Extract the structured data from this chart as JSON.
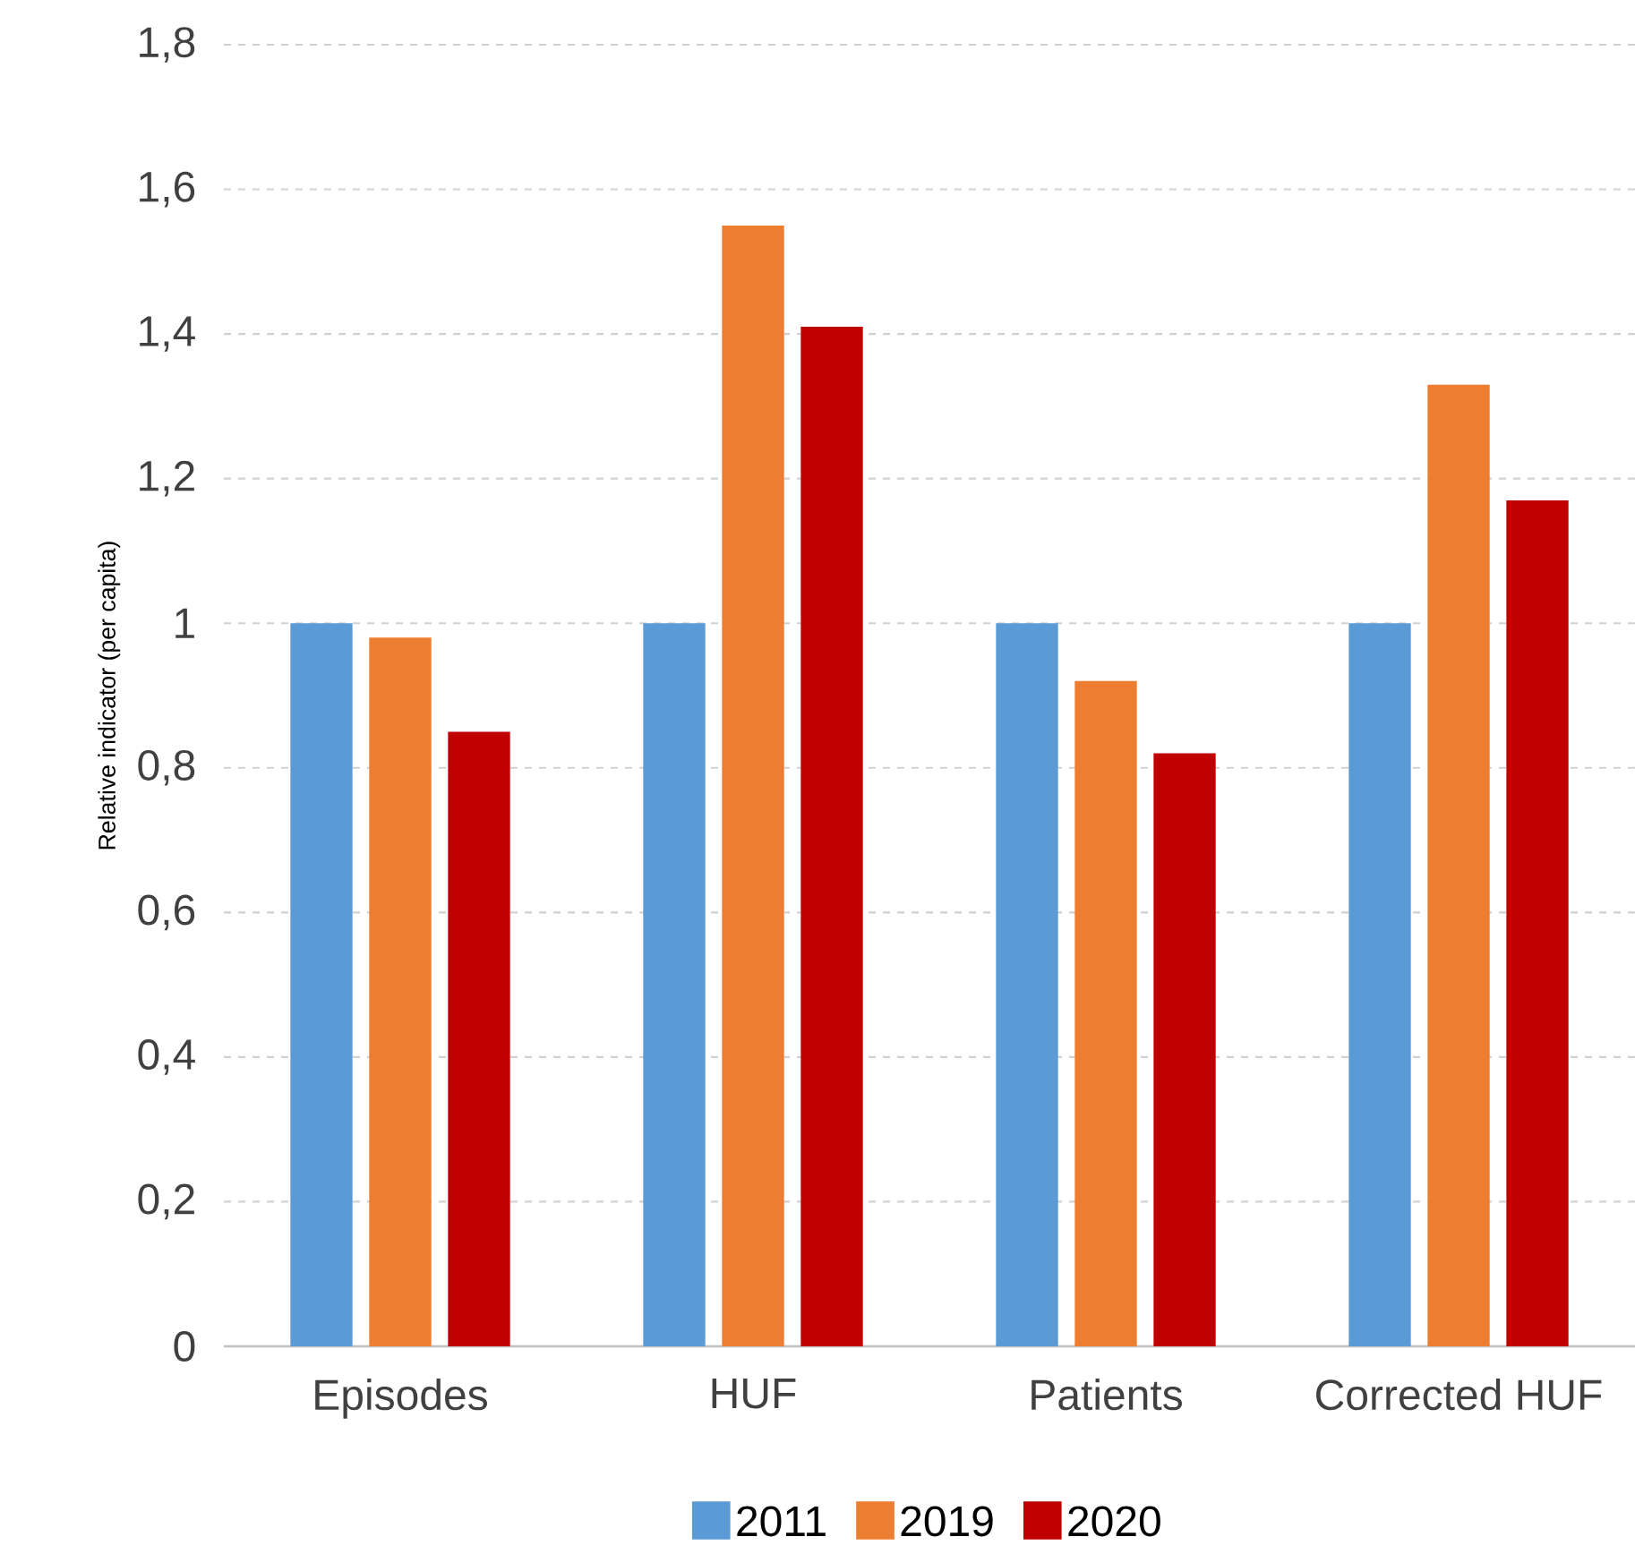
{
  "chart_data": {
    "type": "bar",
    "ylabel": "Relative indicator (per capita)",
    "categories": [
      "Episodes",
      "HUF",
      "Patients",
      "Corrected HUF"
    ],
    "series": [
      {
        "name": "2011",
        "color": "#5b9bd5",
        "values": [
          1,
          1,
          1,
          1
        ]
      },
      {
        "name": "2019",
        "color": "#ed7d31",
        "values": [
          0.98,
          1.55,
          0.92,
          1.33
        ]
      },
      {
        "name": "2020",
        "color": "#c00000",
        "values": [
          0.85,
          1.41,
          0.82,
          1.17
        ]
      }
    ],
    "ylim": [
      0,
      1.8
    ],
    "yticks": [
      0,
      {
        "value": 0.2,
        "label": "0,2"
      },
      {
        "value": 0.4,
        "label": "0,4"
      },
      {
        "value": 0.6,
        "label": "0,6"
      },
      {
        "value": 0.8,
        "label": "0,8"
      },
      1,
      {
        "value": 1.2,
        "label": "1,2"
      },
      {
        "value": 1.4,
        "label": "1,4"
      },
      {
        "value": 1.6,
        "label": "1,6"
      },
      {
        "value": 1.8,
        "label": "1,8"
      }
    ],
    "grid": "y",
    "legend": "bottom"
  }
}
